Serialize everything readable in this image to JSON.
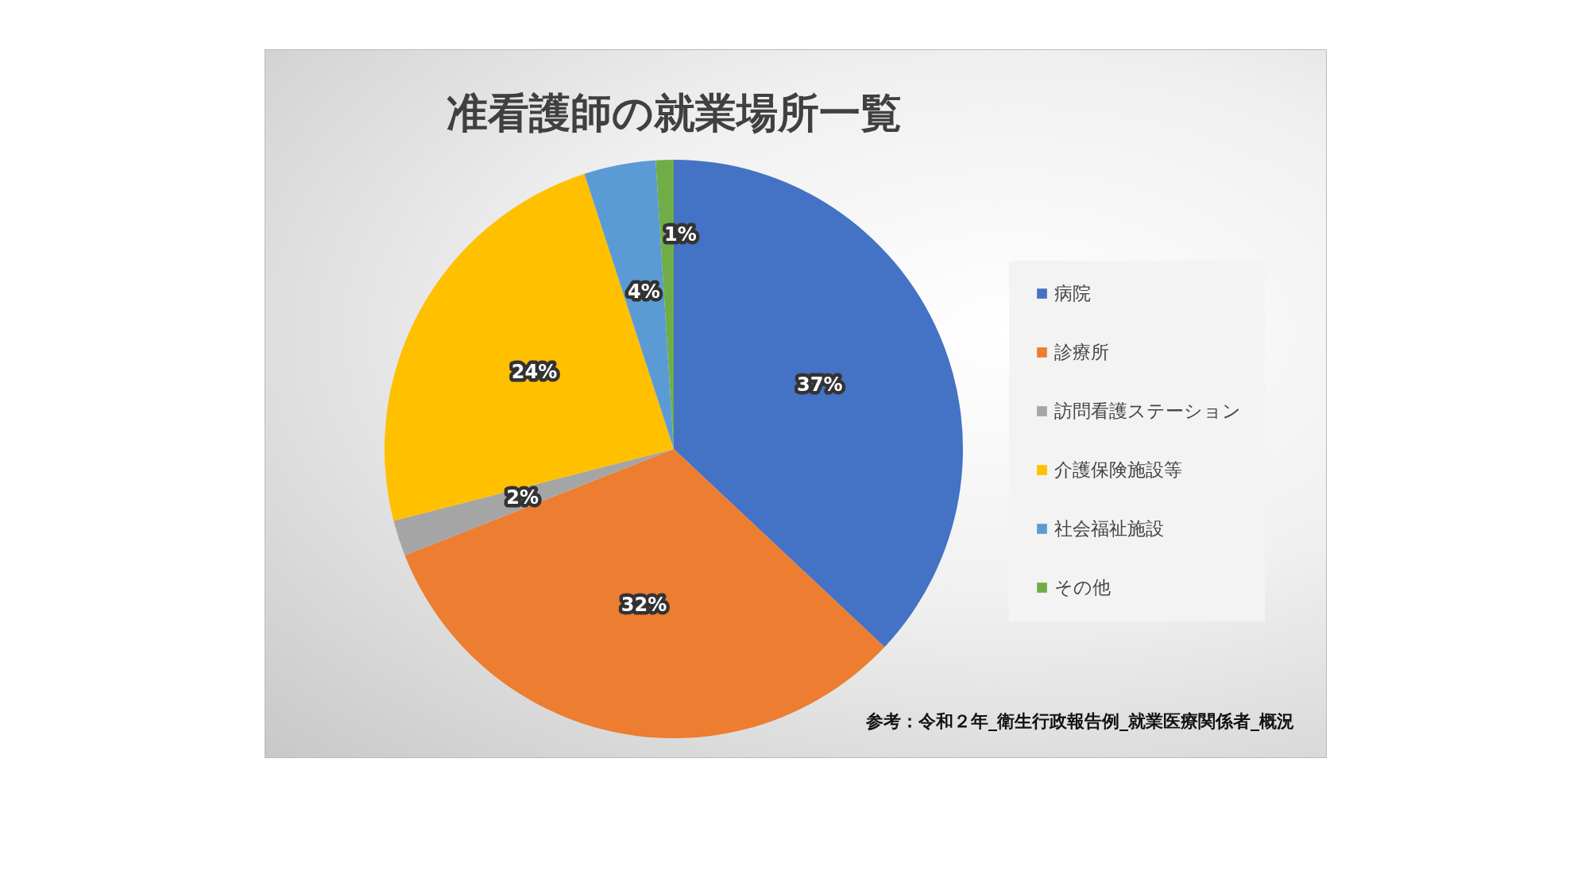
{
  "chart_data": {
    "type": "pie",
    "title": "准看護師の就業場所一覧",
    "categories": [
      "病院",
      "診療所",
      "訪問看護ステーション",
      "介護保険施設等",
      "社会福祉施設",
      "その他"
    ],
    "values": [
      37,
      32,
      2,
      24,
      4,
      1
    ],
    "colors": [
      "#4472c4",
      "#ed7d31",
      "#a5a5a5",
      "#ffc000",
      "#5b9bd5",
      "#70ad47"
    ],
    "value_labels": [
      "37%",
      "32%",
      "2%",
      "24%",
      "4%",
      "1%"
    ],
    "legend": "right",
    "annotations": [
      "参考：令和２年_衛生行政報告例_就業医療関係者_概況"
    ]
  }
}
